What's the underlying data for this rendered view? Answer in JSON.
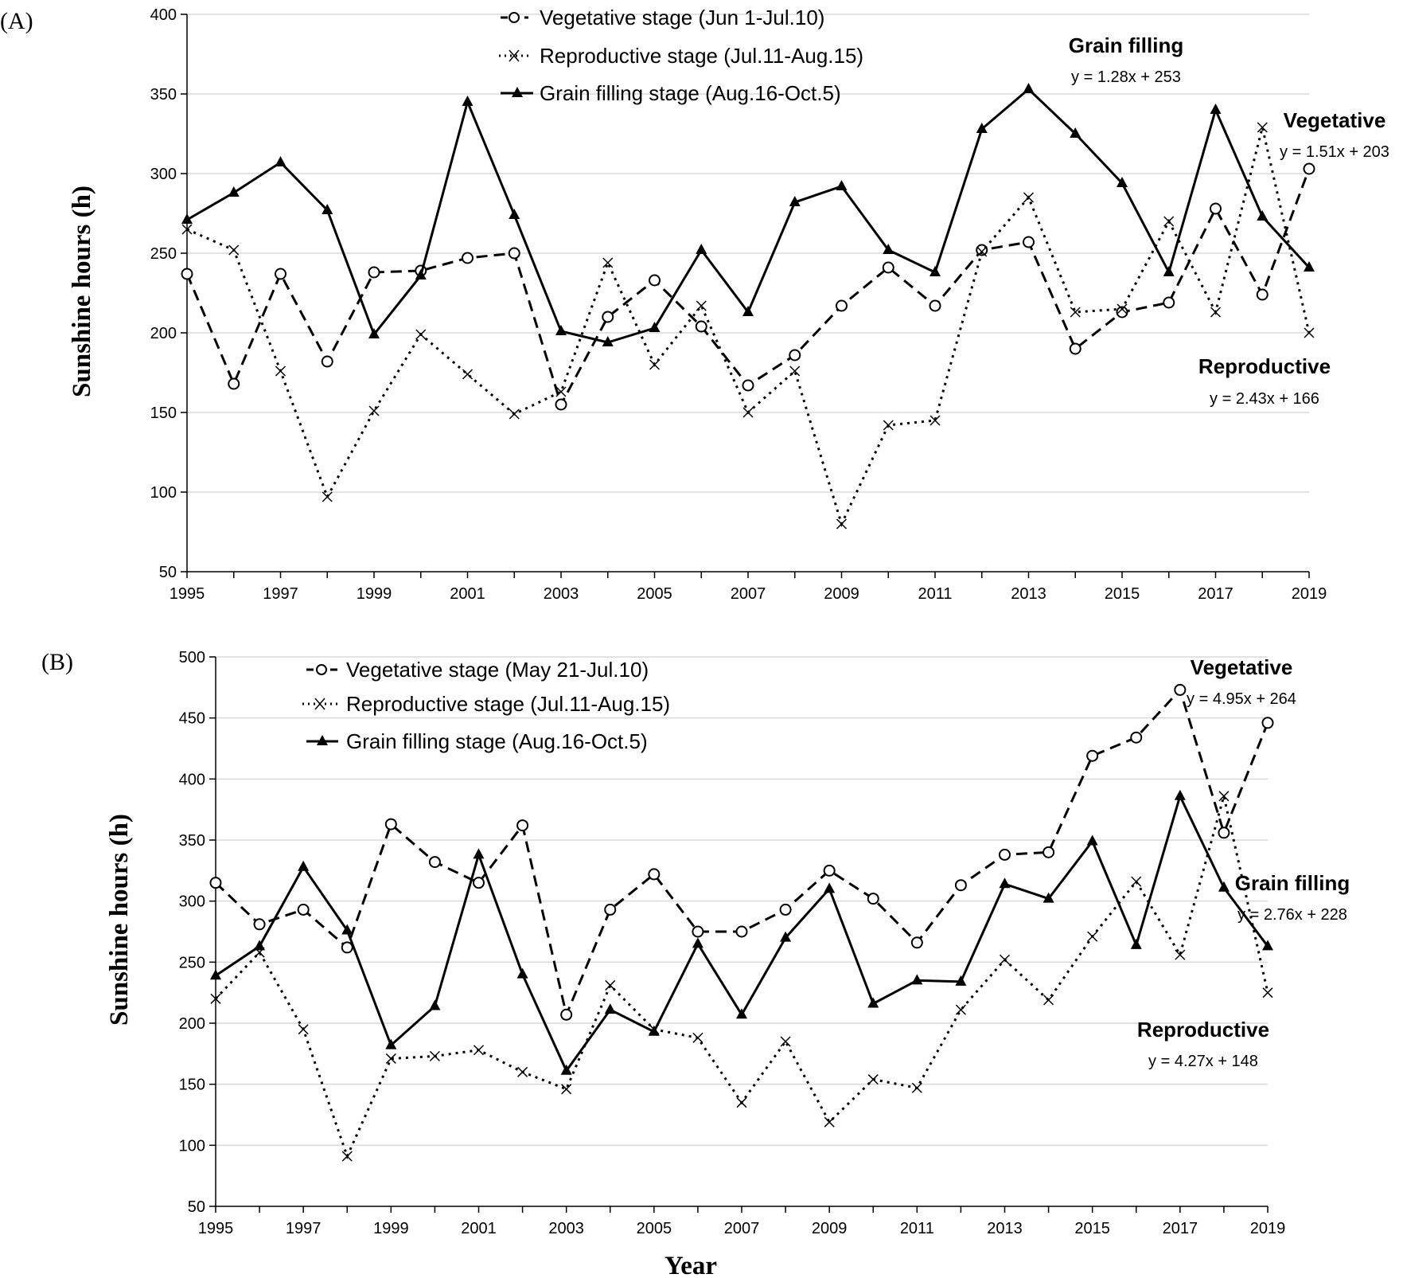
{
  "chart_data": [
    {
      "panel": "(A)",
      "type": "line",
      "xlabel": "",
      "ylabel": "Sunshine hours (h)",
      "ylim": [
        50,
        400
      ],
      "yticks": [
        50,
        100,
        150,
        200,
        250,
        300,
        350,
        400
      ],
      "x": [
        1995,
        1996,
        1997,
        1998,
        1999,
        2000,
        2001,
        2002,
        2003,
        2004,
        2005,
        2006,
        2007,
        2008,
        2009,
        2010,
        2011,
        2012,
        2013,
        2014,
        2015,
        2016,
        2017,
        2018,
        2019
      ],
      "xticks": [
        1995,
        1997,
        1999,
        2001,
        2003,
        2005,
        2007,
        2009,
        2011,
        2013,
        2015,
        2017,
        2019
      ],
      "grid": true,
      "series": [
        {
          "key": "veg",
          "name": "Vegetative stage (Jun 1-Jul.10)",
          "style": "dashed",
          "marker": "circle",
          "values": [
            237,
            168,
            237,
            182,
            238,
            239,
            247,
            250,
            155,
            210,
            233,
            204,
            167,
            186,
            217,
            241,
            217,
            252,
            257,
            190,
            213,
            219,
            278,
            224,
            303
          ]
        },
        {
          "key": "rep",
          "name": "Reproductive stage (Jul.11-Aug.15)",
          "style": "dotted",
          "marker": "x",
          "values": [
            265,
            252,
            176,
            97,
            151,
            199,
            174,
            149,
            163,
            244,
            180,
            217,
            150,
            176,
            80,
            142,
            145,
            251,
            285,
            213,
            215,
            270,
            213,
            329,
            200
          ]
        },
        {
          "key": "grain",
          "name": "Grain filling stage (Aug.16-Oct.5)",
          "style": "solid",
          "marker": "triangle",
          "values": [
            271,
            288,
            307,
            277,
            199,
            236,
            345,
            274,
            201,
            194,
            203,
            252,
            213,
            282,
            292,
            252,
            238,
            328,
            353,
            325,
            294,
            238,
            340,
            273,
            241
          ]
        }
      ],
      "annotations": [
        {
          "key": "grain",
          "title": "Grain filling",
          "equation": "y = 1.28x + 253"
        },
        {
          "key": "veg",
          "title": "Vegetative",
          "equation": "y = 1.51x + 203"
        },
        {
          "key": "rep",
          "title": "Reproductive",
          "equation": "y = 2.43x + 166"
        }
      ]
    },
    {
      "panel": "(B)",
      "type": "line",
      "xlabel": "Year",
      "ylabel": "Sunshine hours (h)",
      "ylim": [
        50,
        500
      ],
      "yticks": [
        50,
        100,
        150,
        200,
        250,
        300,
        350,
        400,
        450,
        500
      ],
      "x": [
        1995,
        1996,
        1997,
        1998,
        1999,
        2000,
        2001,
        2002,
        2003,
        2004,
        2005,
        2006,
        2007,
        2008,
        2009,
        2010,
        2011,
        2012,
        2013,
        2014,
        2015,
        2016,
        2017,
        2018,
        2019
      ],
      "xticks": [
        1995,
        1997,
        1999,
        2001,
        2003,
        2005,
        2007,
        2009,
        2011,
        2013,
        2015,
        2017,
        2019
      ],
      "grid": true,
      "series": [
        {
          "key": "veg",
          "name": "Vegetative stage (May 21-Jul.10)",
          "style": "dashed",
          "marker": "circle",
          "values": [
            315,
            281,
            293,
            262,
            363,
            332,
            315,
            362,
            207,
            293,
            322,
            275,
            275,
            293,
            325,
            302,
            266,
            313,
            338,
            340,
            419,
            434,
            473,
            356,
            446
          ]
        },
        {
          "key": "rep",
          "name": "Reproductive stage (Jul.11-Aug.15)",
          "style": "dotted",
          "marker": "x",
          "values": [
            220,
            258,
            195,
            91,
            171,
            173,
            178,
            160,
            146,
            231,
            195,
            188,
            135,
            185,
            119,
            154,
            147,
            211,
            252,
            219,
            271,
            316,
            256,
            386,
            225
          ]
        },
        {
          "key": "grain",
          "name": "Grain filling stage (Aug.16-Oct.5)",
          "style": "solid",
          "marker": "triangle",
          "values": [
            239,
            263,
            328,
            276,
            182,
            214,
            338,
            240,
            161,
            211,
            193,
            265,
            207,
            270,
            310,
            216,
            235,
            234,
            314,
            302,
            349,
            264,
            386,
            311,
            263
          ]
        }
      ],
      "annotations": [
        {
          "key": "veg",
          "title": "Vegetative",
          "equation": "y = 4.95x + 264"
        },
        {
          "key": "grain",
          "title": "Grain filling",
          "equation": "y = 2.76x + 228"
        },
        {
          "key": "rep",
          "title": "Reproductive",
          "equation": "y = 4.27x + 148"
        }
      ]
    }
  ]
}
